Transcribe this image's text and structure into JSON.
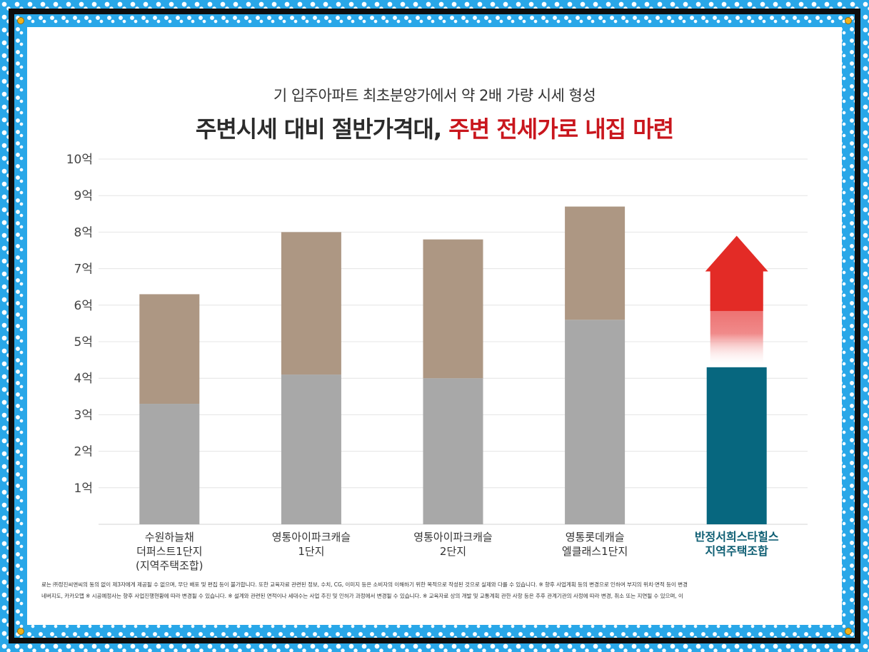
{
  "header": {
    "subtitle": "기 입주아파트 최초분양가에서 약 2배 가량 시세 형성",
    "title_part1": "주변시세 대비 절반가격대, ",
    "title_part2": "주변 전세가로 내집 마련"
  },
  "chart_data": {
    "type": "bar",
    "stacked": true,
    "categories": [
      [
        "수원하늘채",
        "더퍼스트1단지",
        "(지역주택조합)"
      ],
      [
        "영통아이파크캐슬",
        "1단지"
      ],
      [
        "영통아이파크캐슬",
        "2단지"
      ],
      [
        "영통롯데캐슬",
        "엘클래스1단지"
      ],
      [
        "반정서희스타힐스",
        "지역주택조합"
      ]
    ],
    "highlight_category_index": 4,
    "series": [
      {
        "values": [
          3.3,
          4.1,
          4.0,
          5.6,
          4.3
        ]
      },
      {
        "values": [
          3.0,
          3.9,
          3.8,
          3.1,
          0
        ]
      }
    ],
    "arrow": {
      "category_index": 4,
      "from": 4.3,
      "to": 7.9
    },
    "y_ticks": [
      "1억",
      "2억",
      "3억",
      "4억",
      "5억",
      "6억",
      "7억",
      "8억",
      "9억",
      "10억"
    ],
    "ylim": [
      0,
      10
    ],
    "grid": true,
    "colors": {
      "base": "#a8a8a8",
      "top": "#ad9783",
      "highlight": "#07677f",
      "arrow": "#e32b26",
      "grid": "#e4e4e4"
    }
  },
  "footer": {
    "line1": "료는 ㈜정진씨앤씨의 동의 없이 제3자에게 제공될 수 없으며, 무단 배포 및 편집 등이 불가합니다. 또한 교육자료 관련된 정보, 수치, CG, 이미지 등은 소비자의 이해하기 위한 목적으로 작성된 것으로 실제와 다를 수 있습니다. ※ 향후 사업계획 등의 변경으로 인하여 부지의 위치·면적 등이 변경",
    "line2": "네버지도, 카카오맵 ※ 시공예정사는 향후 사업진행현황에 따라 변경될 수 있습니다. ※ 설계와 관련된 면적이나 세대수는 사업 추진 및 인허가 과정에서 변경될 수 있습니다. ※ 교육자료 상의 개발 및 교통계획 관한 사항 등은 추후 관계기관의 사정에 따라 변경, 취소 또는 지연될 수 있으며, 이"
  }
}
